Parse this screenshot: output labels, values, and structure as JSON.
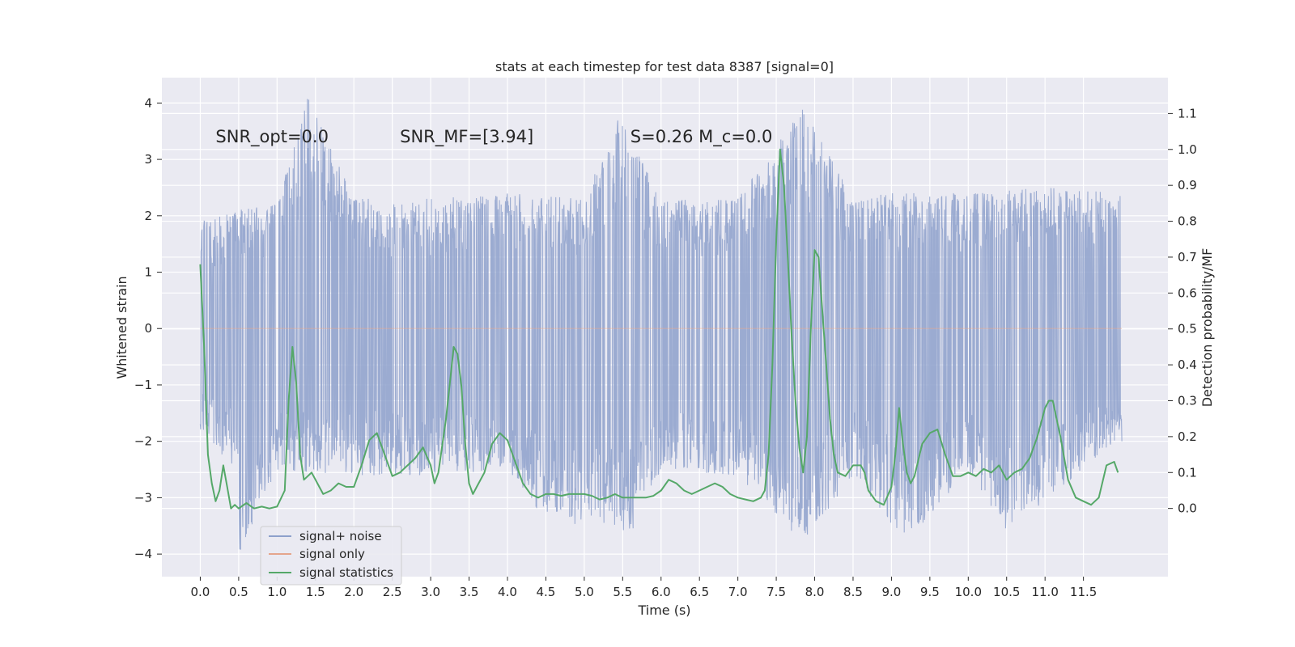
{
  "chart_data": {
    "type": "line",
    "title": "stats at each timestep for test data 8387 [signal=0]",
    "xlabel": "Time (s)",
    "ylabel": "Whitened strain",
    "y2label": "Detection probability/MF",
    "xlim": [
      -0.5,
      12.6
    ],
    "ylim": [
      -4.4,
      4.45
    ],
    "y2lim": [
      -0.19,
      1.2
    ],
    "xticks": [
      0.0,
      0.5,
      1.0,
      1.5,
      2.0,
      2.5,
      3.0,
      3.5,
      4.0,
      4.5,
      5.0,
      5.5,
      6.0,
      6.5,
      7.0,
      7.5,
      8.0,
      8.5,
      9.0,
      9.5,
      10.0,
      10.5,
      11.0,
      11.5
    ],
    "xtick_labels": [
      "0.0",
      "0.5",
      "1.0",
      "1.5",
      "2.0",
      "2.5",
      "3.0",
      "3.5",
      "4.0",
      "4.5",
      "5.0",
      "5.5",
      "6.0",
      "6.5",
      "7.0",
      "7.5",
      "8.0",
      "8.5",
      "9.0",
      "9.5",
      "10.0",
      "10.5",
      "11.0",
      "11.5"
    ],
    "yticks": [
      -4,
      -3,
      -2,
      -1,
      0,
      1,
      2,
      3,
      4
    ],
    "ytick_labels": [
      "−4",
      "−3",
      "−2",
      "−1",
      "0",
      "1",
      "2",
      "3",
      "4"
    ],
    "y2ticks": [
      0.0,
      0.1,
      0.2,
      0.3,
      0.4,
      0.5,
      0.6,
      0.7,
      0.8,
      0.9,
      1.0,
      1.1
    ],
    "y2tick_labels": [
      "0.0",
      "0.1",
      "0.2",
      "0.3",
      "0.4",
      "0.5",
      "0.6",
      "0.7",
      "0.8",
      "0.9",
      "1.0",
      "1.1"
    ],
    "grid": true,
    "legend_position": "bottom-left",
    "annotations": [
      {
        "text": "SNR_opt=0.0",
        "x": 0.2,
        "y": 3.3
      },
      {
        "text": "SNR_MF=[3.94]",
        "x": 2.6,
        "y": 3.3
      },
      {
        "text": "S=0.26   M_c=0.0",
        "x": 5.6,
        "y": 3.3
      }
    ],
    "series": [
      {
        "name": "signal+ noise",
        "axis": "left",
        "color": "#8da0cb",
        "time_range": [
          0.0,
          12.0
        ],
        "envelope_upper": [
          [
            0.0,
            1.9
          ],
          [
            0.5,
            2.1
          ],
          [
            1.0,
            2.2
          ],
          [
            1.4,
            4.1
          ],
          [
            2.0,
            2.3
          ],
          [
            3.0,
            2.3
          ],
          [
            4.0,
            2.4
          ],
          [
            5.0,
            2.3
          ],
          [
            5.45,
            3.75
          ],
          [
            6.0,
            2.3
          ],
          [
            7.0,
            2.3
          ],
          [
            7.85,
            3.9
          ],
          [
            8.5,
            2.3
          ],
          [
            9.0,
            2.4
          ],
          [
            10.0,
            2.4
          ],
          [
            11.0,
            2.5
          ],
          [
            11.95,
            2.4
          ]
        ],
        "envelope_lower": [
          [
            0.0,
            -1.8
          ],
          [
            0.5,
            -2.6
          ],
          [
            0.5,
            -4.0
          ],
          [
            1.0,
            -2.5
          ],
          [
            2.0,
            -2.6
          ],
          [
            3.0,
            -2.6
          ],
          [
            4.0,
            -2.5
          ],
          [
            4.5,
            -3.4
          ],
          [
            5.65,
            -3.6
          ],
          [
            6.0,
            -2.5
          ],
          [
            7.0,
            -2.6
          ],
          [
            7.85,
            -3.8
          ],
          [
            8.5,
            -2.6
          ],
          [
            9.2,
            -3.8
          ],
          [
            10.0,
            -2.5
          ],
          [
            10.5,
            -3.6
          ],
          [
            11.95,
            -2.0
          ]
        ]
      },
      {
        "name": "signal only",
        "axis": "left",
        "color": "#e5a58c",
        "x": [
          0.0,
          12.0
        ],
        "y": [
          0.0,
          0.0
        ]
      },
      {
        "name": "signal statistics",
        "axis": "right",
        "color": "#55a868",
        "x": [
          0.0,
          0.05,
          0.1,
          0.15,
          0.2,
          0.25,
          0.3,
          0.35,
          0.4,
          0.45,
          0.5,
          0.6,
          0.7,
          0.8,
          0.9,
          1.0,
          1.1,
          1.15,
          1.2,
          1.25,
          1.3,
          1.35,
          1.4,
          1.45,
          1.5,
          1.55,
          1.6,
          1.7,
          1.8,
          1.9,
          2.0,
          2.1,
          2.2,
          2.3,
          2.4,
          2.5,
          2.6,
          2.7,
          2.8,
          2.9,
          3.0,
          3.05,
          3.1,
          3.2,
          3.3,
          3.35,
          3.4,
          3.45,
          3.5,
          3.55,
          3.6,
          3.7,
          3.8,
          3.9,
          4.0,
          4.1,
          4.2,
          4.3,
          4.4,
          4.5,
          4.6,
          4.7,
          4.8,
          4.9,
          5.0,
          5.1,
          5.2,
          5.3,
          5.4,
          5.5,
          5.6,
          5.7,
          5.8,
          5.9,
          6.0,
          6.1,
          6.2,
          6.3,
          6.4,
          6.5,
          6.6,
          6.7,
          6.8,
          6.9,
          7.0,
          7.1,
          7.2,
          7.3,
          7.35,
          7.4,
          7.45,
          7.5,
          7.55,
          7.6,
          7.65,
          7.7,
          7.75,
          7.8,
          7.85,
          7.9,
          7.95,
          8.0,
          8.05,
          8.1,
          8.15,
          8.2,
          8.25,
          8.3,
          8.4,
          8.5,
          8.6,
          8.65,
          8.7,
          8.8,
          8.9,
          9.0,
          9.05,
          9.1,
          9.15,
          9.2,
          9.25,
          9.3,
          9.4,
          9.5,
          9.6,
          9.7,
          9.8,
          9.9,
          10.0,
          10.1,
          10.2,
          10.3,
          10.4,
          10.5,
          10.6,
          10.7,
          10.8,
          10.9,
          11.0,
          11.05,
          11.1,
          11.15,
          11.2,
          11.3,
          11.4,
          11.5,
          11.6,
          11.7,
          11.8,
          11.9,
          11.95
        ],
        "y": [
          0.68,
          0.45,
          0.15,
          0.07,
          0.02,
          0.05,
          0.12,
          0.06,
          0.0,
          0.01,
          0.0,
          0.015,
          0.0,
          0.005,
          0.0,
          0.005,
          0.05,
          0.3,
          0.45,
          0.35,
          0.15,
          0.08,
          0.09,
          0.1,
          0.08,
          0.06,
          0.04,
          0.05,
          0.07,
          0.06,
          0.06,
          0.12,
          0.19,
          0.21,
          0.15,
          0.09,
          0.1,
          0.12,
          0.14,
          0.17,
          0.12,
          0.07,
          0.1,
          0.25,
          0.45,
          0.43,
          0.34,
          0.18,
          0.07,
          0.04,
          0.06,
          0.1,
          0.18,
          0.21,
          0.19,
          0.13,
          0.07,
          0.04,
          0.03,
          0.04,
          0.04,
          0.035,
          0.04,
          0.04,
          0.04,
          0.035,
          0.025,
          0.03,
          0.04,
          0.03,
          0.03,
          0.03,
          0.03,
          0.035,
          0.05,
          0.08,
          0.07,
          0.05,
          0.04,
          0.05,
          0.06,
          0.07,
          0.06,
          0.04,
          0.03,
          0.025,
          0.02,
          0.03,
          0.05,
          0.15,
          0.4,
          0.75,
          1.0,
          0.9,
          0.7,
          0.48,
          0.3,
          0.17,
          0.1,
          0.2,
          0.5,
          0.72,
          0.7,
          0.55,
          0.4,
          0.25,
          0.15,
          0.1,
          0.09,
          0.12,
          0.12,
          0.1,
          0.05,
          0.02,
          0.01,
          0.06,
          0.15,
          0.28,
          0.18,
          0.1,
          0.07,
          0.09,
          0.18,
          0.21,
          0.22,
          0.15,
          0.09,
          0.09,
          0.1,
          0.09,
          0.11,
          0.1,
          0.12,
          0.08,
          0.1,
          0.11,
          0.14,
          0.2,
          0.28,
          0.3,
          0.3,
          0.25,
          0.2,
          0.08,
          0.03,
          0.02,
          0.01,
          0.03,
          0.12,
          0.13,
          0.1
        ]
      }
    ]
  }
}
